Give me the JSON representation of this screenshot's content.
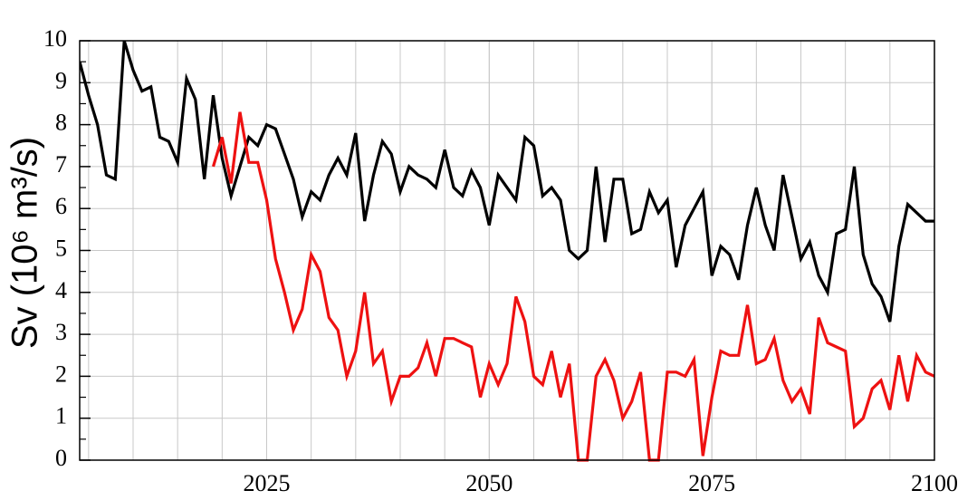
{
  "chart_data": {
    "type": "line",
    "ylabel": "Sv (10⁶ m³/s)",
    "x": [
      2004,
      2005,
      2006,
      2007,
      2008,
      2009,
      2010,
      2011,
      2012,
      2013,
      2014,
      2015,
      2016,
      2017,
      2018,
      2019,
      2020,
      2021,
      2022,
      2023,
      2024,
      2025,
      2026,
      2027,
      2028,
      2029,
      2030,
      2031,
      2032,
      2033,
      2034,
      2035,
      2036,
      2037,
      2038,
      2039,
      2040,
      2041,
      2042,
      2043,
      2044,
      2045,
      2046,
      2047,
      2048,
      2049,
      2050,
      2051,
      2052,
      2053,
      2054,
      2055,
      2056,
      2057,
      2058,
      2059,
      2060,
      2061,
      2062,
      2063,
      2064,
      2065,
      2066,
      2067,
      2068,
      2069,
      2070,
      2071,
      2072,
      2073,
      2074,
      2075,
      2076,
      2077,
      2078,
      2079,
      2080,
      2081,
      2082,
      2083,
      2084,
      2085,
      2086,
      2087,
      2088,
      2089,
      2090,
      2091,
      2092,
      2093,
      2094,
      2095,
      2096,
      2097,
      2098,
      2099,
      2100
    ],
    "series": [
      {
        "color": "#000000",
        "values": [
          9.5,
          8.7,
          8.0,
          6.8,
          6.7,
          10.0,
          9.3,
          8.8,
          8.9,
          7.7,
          7.6,
          7.1,
          9.1,
          8.6,
          6.7,
          8.7,
          7.2,
          6.3,
          7.0,
          7.7,
          7.5,
          8.0,
          7.9,
          7.3,
          6.7,
          5.8,
          6.4,
          6.2,
          6.8,
          7.2,
          6.8,
          7.8,
          5.7,
          6.8,
          7.6,
          7.3,
          6.4,
          7.0,
          6.8,
          6.7,
          6.5,
          7.4,
          6.5,
          6.3,
          6.9,
          6.5,
          5.6,
          6.8,
          6.5,
          6.2,
          7.7,
          7.5,
          6.3,
          6.5,
          6.2,
          5.0,
          4.8,
          5.0,
          7.0,
          5.2,
          6.7,
          6.7,
          5.4,
          5.5,
          6.4,
          5.9,
          6.2,
          4.6,
          5.6,
          6.0,
          6.4,
          4.4,
          5.1,
          4.9,
          4.3,
          5.6,
          6.5,
          5.6,
          5.0,
          6.8,
          5.8,
          4.8,
          5.2,
          4.4,
          4.0,
          5.4,
          5.5,
          7.0,
          4.9,
          4.2,
          3.9,
          3.3,
          5.1,
          6.1,
          5.9,
          5.7,
          5.7
        ]
      },
      {
        "color": "#ee1111",
        "values": [
          null,
          null,
          null,
          null,
          null,
          null,
          null,
          null,
          null,
          null,
          null,
          null,
          null,
          null,
          null,
          7.0,
          7.7,
          6.6,
          8.3,
          7.1,
          7.1,
          6.2,
          4.8,
          4.0,
          3.1,
          3.6,
          4.9,
          4.5,
          3.4,
          3.1,
          2.0,
          2.6,
          4.0,
          2.3,
          2.6,
          1.4,
          2.0,
          2.0,
          2.2,
          2.8,
          2.0,
          2.9,
          2.9,
          2.8,
          2.7,
          1.5,
          2.3,
          1.8,
          2.3,
          3.9,
          3.3,
          2.0,
          1.8,
          2.6,
          1.5,
          2.3,
          0,
          0,
          2.0,
          2.4,
          1.9,
          1.0,
          1.4,
          2.1,
          0,
          0,
          2.1,
          2.1,
          2.0,
          2.4,
          0.1,
          1.5,
          2.6,
          2.5,
          2.5,
          3.7,
          2.3,
          2.4,
          2.9,
          1.9,
          1.4,
          1.7,
          1.1,
          3.4,
          2.8,
          2.7,
          2.6,
          0.8,
          1.0,
          1.7,
          1.9,
          1.2,
          2.5,
          1.4,
          2.5,
          2.1,
          2.0
        ]
      }
    ],
    "xlim": [
      2004,
      2100
    ],
    "xticks": [
      2025,
      2050,
      2075,
      2100
    ],
    "ylim": [
      0,
      10
    ],
    "yticks": [
      0,
      1,
      2,
      3,
      4,
      5,
      6,
      7,
      8,
      9,
      10
    ],
    "grid": true
  }
}
